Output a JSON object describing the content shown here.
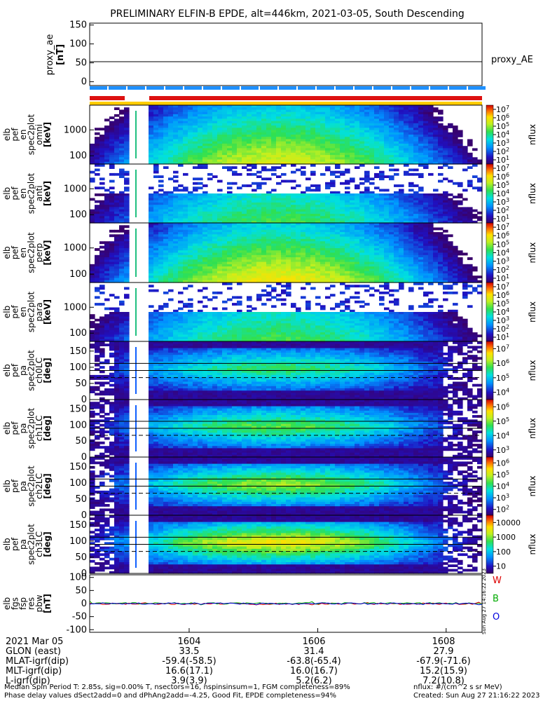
{
  "title": "PRELIMINARY ELFIN-B EPDE, alt=446km, 2021-03-05, South Descending",
  "chart_data": [
    {
      "type": "line",
      "panel": "proxy_ae",
      "ylabel_lines": [
        "proxy_ae",
        "[nT]"
      ],
      "legend": "proxy_AE",
      "ylim": [
        -10,
        155
      ],
      "yticks": [
        0,
        50,
        100,
        150
      ],
      "series": [
        {
          "name": "proxy_AE",
          "values": [
            53,
            53
          ]
        }
      ]
    },
    {
      "type": "heatmap",
      "panel": "omni",
      "ylabel_lines": [
        "elb",
        "pef",
        "en",
        "spec2plot",
        "omni",
        "[keV]"
      ],
      "yscale": "log",
      "ytick_labels": [
        "100",
        "1000"
      ],
      "colorbar_label": "nflux",
      "colorbar_ticks": [
        "10^1",
        "10^2",
        "10^3",
        "10^4",
        "10^5",
        "10^6",
        "10^7"
      ]
    },
    {
      "type": "heatmap",
      "panel": "anti",
      "ylabel_lines": [
        "elb",
        "pef",
        "en",
        "spec2plot",
        "anti",
        "[keV]"
      ],
      "yscale": "log",
      "ytick_labels": [
        "100",
        "1000"
      ],
      "colorbar_label": "nflux",
      "colorbar_ticks": [
        "10^1",
        "10^2",
        "10^3",
        "10^4",
        "10^5",
        "10^6",
        "10^7"
      ]
    },
    {
      "type": "heatmap",
      "panel": "perp",
      "ylabel_lines": [
        "elb",
        "pef",
        "en",
        "spec2plot",
        "perp",
        "[keV]"
      ],
      "yscale": "log",
      "ytick_labels": [
        "100",
        "1000"
      ],
      "colorbar_label": "nflux",
      "colorbar_ticks": [
        "10^1",
        "10^2",
        "10^3",
        "10^4",
        "10^5",
        "10^6",
        "10^7"
      ]
    },
    {
      "type": "heatmap",
      "panel": "para",
      "ylabel_lines": [
        "elb",
        "pef",
        "en",
        "spec2plot",
        "para",
        "[keV]"
      ],
      "yscale": "log",
      "ytick_labels": [
        "100",
        "1000"
      ],
      "colorbar_label": "nflux",
      "colorbar_ticks": [
        "10^1",
        "10^2",
        "10^3",
        "10^4",
        "10^5",
        "10^6",
        "10^7"
      ]
    },
    {
      "type": "heatmap",
      "panel": "ch0LC",
      "ylabel_lines": [
        "elb",
        "pef",
        "pa",
        "spec2plot",
        "ch0LC",
        "[deg]"
      ],
      "ylim": [
        0,
        180
      ],
      "yticks": [
        0,
        50,
        100,
        150
      ],
      "colorbar_label": "nflux",
      "colorbar_ticks": [
        "10^4",
        "10^5",
        "10^6",
        "10^7"
      ]
    },
    {
      "type": "heatmap",
      "panel": "ch1LC",
      "ylabel_lines": [
        "elb",
        "pef",
        "pa",
        "spec2plot",
        "ch1LC",
        "[deg]"
      ],
      "ylim": [
        0,
        180
      ],
      "yticks": [
        0,
        50,
        100,
        150
      ],
      "colorbar_label": "nflux",
      "colorbar_ticks": [
        "10^3",
        "10^4",
        "10^5",
        "10^6"
      ]
    },
    {
      "type": "heatmap",
      "panel": "ch2LC",
      "ylabel_lines": [
        "elb",
        "pef",
        "pa",
        "spec2plot",
        "ch2LC",
        "[deg]"
      ],
      "ylim": [
        0,
        180
      ],
      "yticks": [
        0,
        50,
        100,
        150
      ],
      "colorbar_label": "nflux",
      "colorbar_ticks": [
        "10^2",
        "10^3",
        "10^4",
        "10^5",
        "10^6"
      ]
    },
    {
      "type": "heatmap",
      "panel": "ch3LC",
      "ylabel_lines": [
        "elb",
        "pef",
        "pa",
        "spec2plot",
        "ch3LC",
        "[deg]"
      ],
      "ylim": [
        0,
        180
      ],
      "yticks": [
        0,
        50,
        100,
        150
      ],
      "colorbar_label": "nflux",
      "colorbar_ticks": [
        "10",
        "100",
        "1000",
        "10000"
      ]
    },
    {
      "type": "line",
      "panel": "pbw",
      "ylabel_lines": [
        "elb",
        "fgs",
        "fsp",
        "res",
        "pbw",
        "[nT]"
      ],
      "ylim": [
        -110,
        110
      ],
      "yticks": [
        -100,
        -50,
        0,
        50,
        100
      ],
      "series": [
        {
          "name": "W",
          "color": "#dd0000"
        },
        {
          "name": "B",
          "color": "#00aa00"
        },
        {
          "name": "O",
          "color": "#0000dd"
        }
      ],
      "side_stamp": "Sun Aug 27 14:16:22 2023"
    }
  ],
  "ephemeris": {
    "labels": [
      "2021 Mar 05",
      "GLON (east)",
      "MLAT-igrf(dip)",
      "MLT-igrf(dip)",
      "L-igrf(dip)"
    ],
    "columns": [
      {
        "time": "1604",
        "glon": "33.5",
        "mlat": "-59.4(-58.5)",
        "mlt": "16.6(17.1)",
        "l": "3.9(3.9)"
      },
      {
        "time": "1606",
        "glon": "31.4",
        "mlat": "-63.8(-65.4)",
        "mlt": "16.0(16.7)",
        "l": "5.2(6.2)"
      },
      {
        "time": "1608",
        "glon": "27.9",
        "mlat": "-67.9(-71.6)",
        "mlt": "15.2(15.9)",
        "l": "7.2(10.8)"
      }
    ]
  },
  "footer": {
    "left1": "Median Spin Period T: 2.85s, sig=0.00% T, nsectors=16, nspinsinsum=1, FGM completeness=89%",
    "left2": "Phase delay values dSect2add=0 and dPhAng2add=-4.25, Good Fit, EPDE completeness=94%",
    "right1": "nflux: #/(cm^2 s sr MeV)",
    "right2": "Created: Sun Aug 27 21:16:22 2023"
  }
}
